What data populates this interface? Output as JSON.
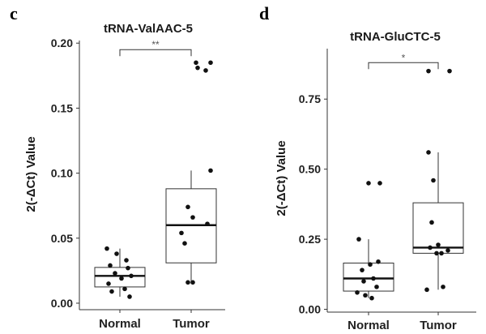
{
  "chart_data": [
    {
      "type": "boxplot",
      "panel_label": "c",
      "title": "tRNA-ValAAC-5",
      "ylabel": "2(-ΔCt) Value",
      "xlabel": "",
      "categories": [
        "Normal",
        "Tumor"
      ],
      "ylim": [
        -0.005,
        0.202
      ],
      "yticks": [
        0.0,
        0.05,
        0.1,
        0.15,
        0.2
      ],
      "ytick_labels": [
        "0.00",
        "0.05",
        "0.10",
        "0.15",
        "0.20"
      ],
      "boxes": [
        {
          "name": "Normal",
          "q1": 0.0125,
          "median": 0.021,
          "q3": 0.0275,
          "whisker_low": 0.005,
          "whisker_high": 0.042
        },
        {
          "name": "Tumor",
          "q1": 0.031,
          "median": 0.06,
          "q3": 0.088,
          "whisker_low": 0.015,
          "whisker_high": 0.102
        }
      ],
      "points": [
        {
          "group": "Normal",
          "values": [
            0.042,
            0.038,
            0.033,
            0.029,
            0.027,
            0.023,
            0.021,
            0.019,
            0.015,
            0.011,
            0.009,
            0.005
          ]
        },
        {
          "group": "Tumor",
          "values": [
            0.185,
            0.185,
            0.181,
            0.179,
            0.102,
            0.074,
            0.066,
            0.061,
            0.054,
            0.046,
            0.016,
            0.016
          ]
        }
      ],
      "significance": {
        "label": "**",
        "between": [
          "Normal",
          "Tumor"
        ],
        "y": 0.195
      }
    },
    {
      "type": "boxplot",
      "panel_label": "d",
      "title": "tRNA-GluCTC-5",
      "ylabel": "2(-ΔCt) Value",
      "xlabel": "",
      "categories": [
        "Normal",
        "Tumor"
      ],
      "ylim": [
        -0.01,
        0.93
      ],
      "yticks": [
        0.0,
        0.25,
        0.5,
        0.75
      ],
      "ytick_labels": [
        "0.00",
        "0.25",
        "0.50",
        "0.75"
      ],
      "boxes": [
        {
          "name": "Normal",
          "q1": 0.065,
          "median": 0.11,
          "q3": 0.165,
          "whisker_low": 0.04,
          "whisker_high": 0.25
        },
        {
          "name": "Tumor",
          "q1": 0.2,
          "median": 0.22,
          "q3": 0.38,
          "whisker_low": 0.07,
          "whisker_high": 0.56
        }
      ],
      "points": [
        {
          "group": "Normal",
          "values": [
            0.45,
            0.45,
            0.25,
            0.17,
            0.16,
            0.14,
            0.11,
            0.1,
            0.08,
            0.06,
            0.05,
            0.04
          ]
        },
        {
          "group": "Tumor",
          "values": [
            0.85,
            0.85,
            0.56,
            0.46,
            0.31,
            0.23,
            0.22,
            0.21,
            0.2,
            0.2,
            0.08,
            0.07
          ]
        }
      ],
      "significance": {
        "label": "*",
        "between": [
          "Normal",
          "Tumor"
        ],
        "y": 0.88
      }
    }
  ]
}
